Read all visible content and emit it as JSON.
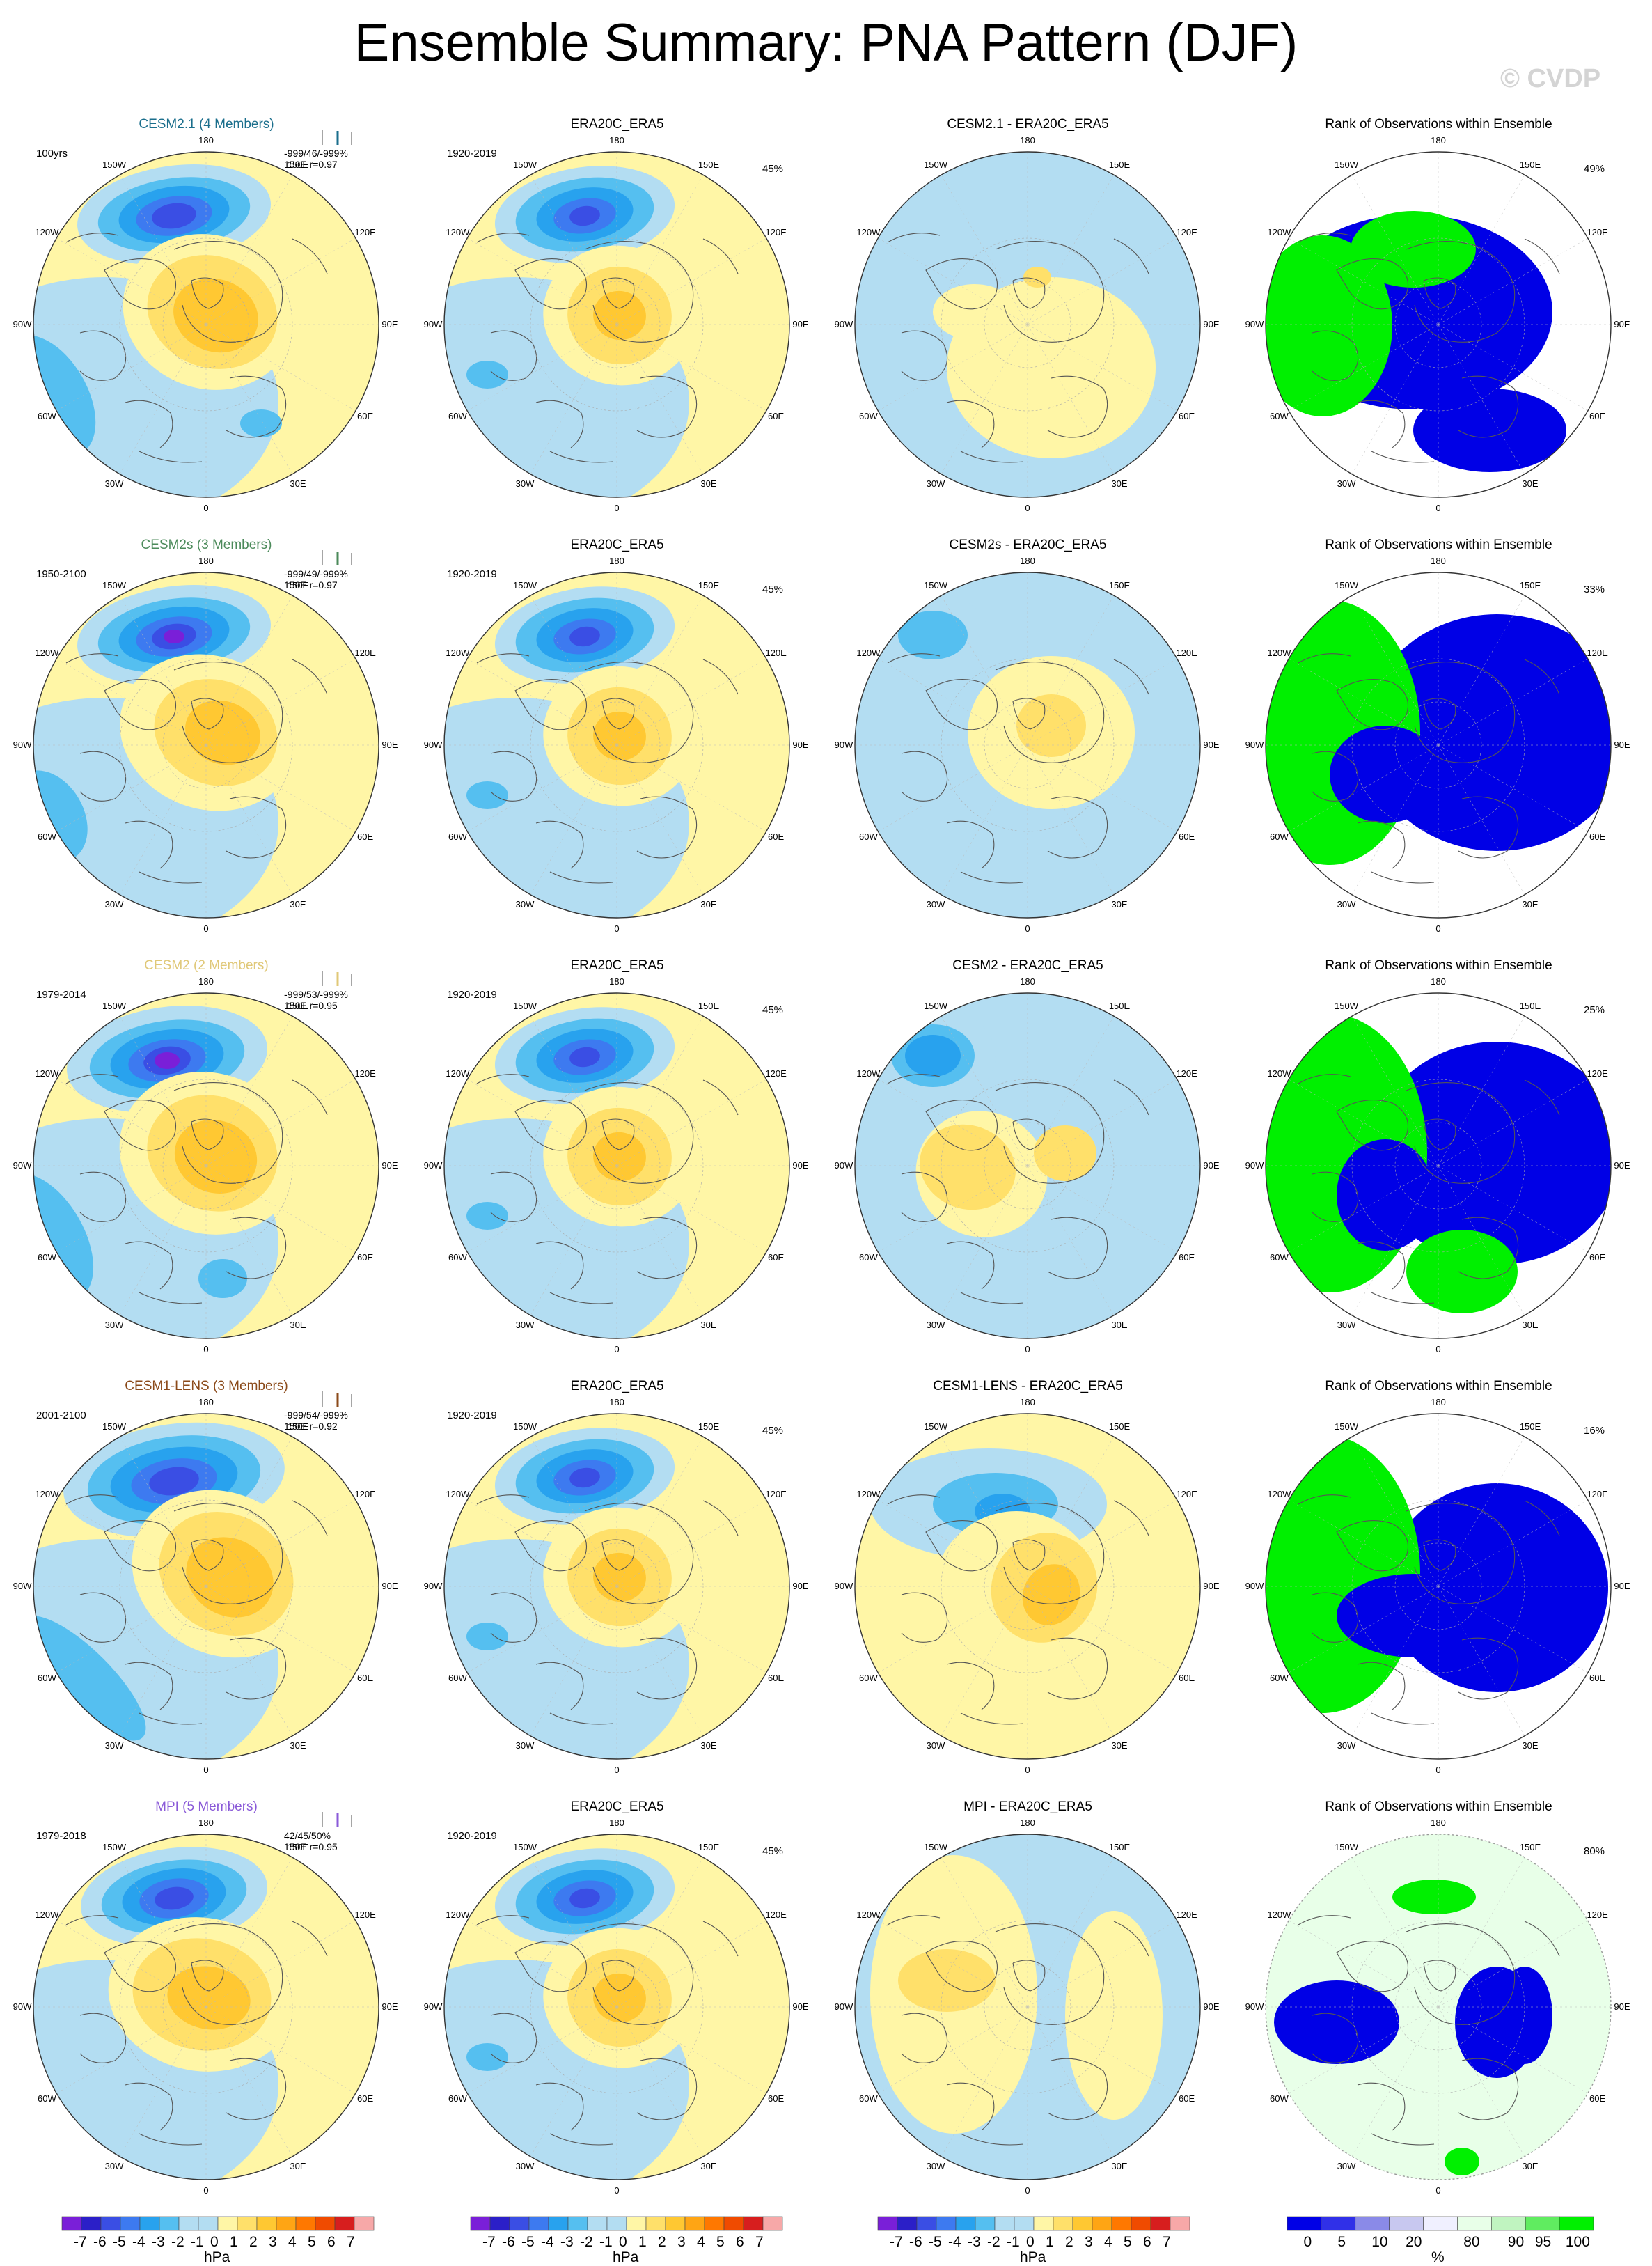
{
  "title": "Ensemble Summary: PNA Pattern (DJF)",
  "watermark": "© CVDP",
  "colors": {
    "neg7": "#7a1fd8",
    "neg6": "#2b1fc8",
    "neg5": "#3a4ee4",
    "neg4": "#3d7af0",
    "neg3": "#28a2ee",
    "neg2": "#55bff0",
    "neg1": "#b3ddf2",
    "pos1": "#fff6a6",
    "pos2": "#ffe06a",
    "pos3": "#ffc832",
    "pos4": "#ffa514",
    "pos5": "#ff7800",
    "pos6": "#f04b00",
    "pos7": "#d71e1e",
    "pos8": "#c00000",
    "pos9": "#f7a8a8",
    "rank_low": "#0000e6",
    "rank_high": "#00f000",
    "rank_mid": "#e8ffe8"
  },
  "lon_labels": [
    "180",
    "150E",
    "120E",
    "90E",
    "60E",
    "30E",
    "0",
    "30W",
    "60W",
    "90W",
    "120W",
    "150W"
  ],
  "rows": [
    {
      "model": {
        "title": "CESM2.1 (4 Members)",
        "title_color": "#1a6e8c",
        "period": "100yrs",
        "stats1": "-999/46/-999%",
        "stats2": "150E r=0.97"
      },
      "obs": {
        "title": "ERA20C_ERA5",
        "period": "1920-2019",
        "pct": "45%"
      },
      "diff": {
        "title": "CESM2.1 - ERA20C_ERA5"
      },
      "rank": {
        "title": "Rank of Observations within Ensemble",
        "pct": "49%"
      }
    },
    {
      "model": {
        "title": "CESM2s (3 Members)",
        "title_color": "#4b8a5a",
        "period": "1950-2100",
        "stats1": "-999/49/-999%",
        "stats2": "150E r=0.97"
      },
      "obs": {
        "title": "ERA20C_ERA5",
        "period": "1920-2019",
        "pct": "45%"
      },
      "diff": {
        "title": "CESM2s - ERA20C_ERA5"
      },
      "rank": {
        "title": "Rank of Observations within Ensemble",
        "pct": "33%"
      }
    },
    {
      "model": {
        "title": "CESM2 (2 Members)",
        "title_color": "#e0c878",
        "period": "1979-2014",
        "stats1": "-999/53/-999%",
        "stats2": "150E r=0.95"
      },
      "obs": {
        "title": "ERA20C_ERA5",
        "period": "1920-2019",
        "pct": "45%"
      },
      "diff": {
        "title": "CESM2 - ERA20C_ERA5"
      },
      "rank": {
        "title": "Rank of Observations within Ensemble",
        "pct": "25%"
      }
    },
    {
      "model": {
        "title": "CESM1-LENS (3 Members)",
        "title_color": "#8b4a1a",
        "period": "2001-2100",
        "stats1": "-999/54/-999%",
        "stats2": "150E r=0.92"
      },
      "obs": {
        "title": "ERA20C_ERA5",
        "period": "1920-2019",
        "pct": "45%"
      },
      "diff": {
        "title": "CESM1-LENS - ERA20C_ERA5"
      },
      "rank": {
        "title": "Rank of Observations within Ensemble",
        "pct": "16%"
      }
    },
    {
      "model": {
        "title": "MPI (5 Members)",
        "title_color": "#8a5ad8",
        "period": "1979-2018",
        "stats1": "42/45/50%",
        "stats2": "150E r=0.95"
      },
      "obs": {
        "title": "ERA20C_ERA5",
        "period": "1920-2019",
        "pct": "45%"
      },
      "diff": {
        "title": "MPI - ERA20C_ERA5"
      },
      "rank": {
        "title": "Rank of Observations within Ensemble",
        "pct": "80%"
      }
    }
  ],
  "colorbars": {
    "hpa_ticks": [
      "-7",
      "-6",
      "-5",
      "-4",
      "-3",
      "-2",
      "-1",
      "0",
      "1",
      "2",
      "3",
      "4",
      "5",
      "6",
      "7"
    ],
    "hpa_unit": "hPa",
    "rank_ticks": [
      "0",
      "5",
      "10",
      "20",
      "80",
      "90",
      "95",
      "100"
    ],
    "rank_unit": "%"
  }
}
